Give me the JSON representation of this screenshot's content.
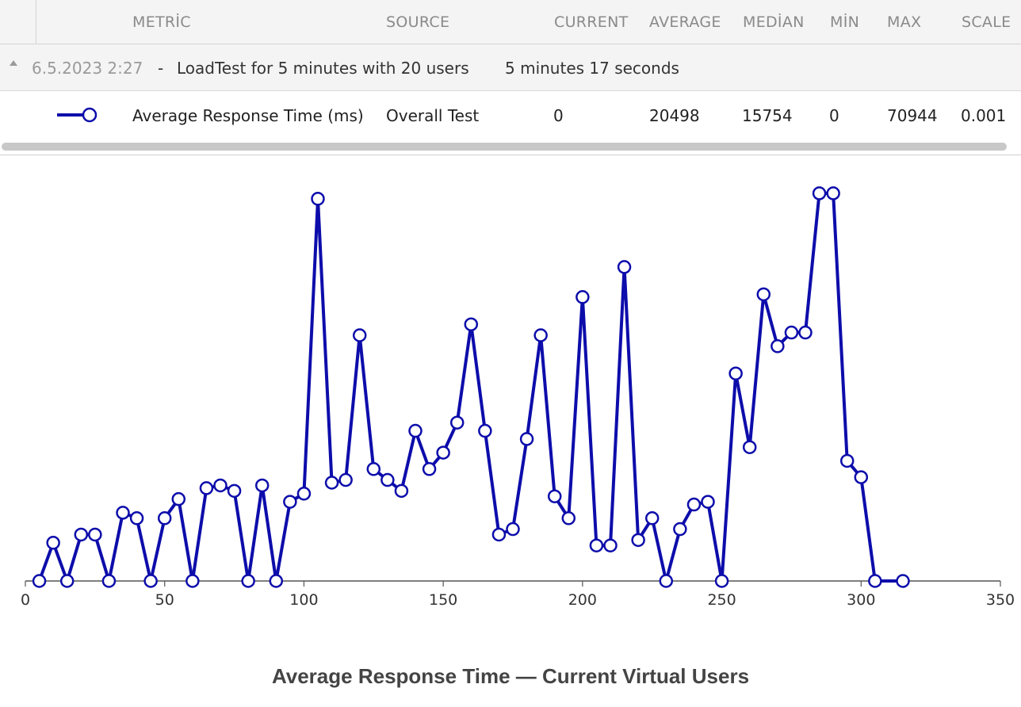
{
  "header": {
    "columns": [
      {
        "label": "METRİC"
      },
      {
        "label": "SOURCE"
      },
      {
        "label": "CURRENT"
      },
      {
        "label": "AVERAGE"
      },
      {
        "label": "MEDİAN"
      },
      {
        "label": "MİN"
      },
      {
        "label": "MAX"
      },
      {
        "label": "SCALE"
      }
    ]
  },
  "group": {
    "date": "6.5.2023 2:27",
    "separator": "-",
    "name": "LoadTest for 5 minutes with 20 users",
    "duration": "5 minutes 17 seconds"
  },
  "row": {
    "metric": "Average Response Time (ms)",
    "source": "Overall Test",
    "current": "0",
    "average": "20498",
    "median": "15754",
    "min": "0",
    "max": "70944",
    "scale": "0.001"
  },
  "colors": {
    "series": "#0d0dab",
    "axis": "#555555",
    "header_bg": "#f4f4f4"
  },
  "caption": "Average Response Time — Current Virtual Users",
  "chart_data": {
    "type": "line",
    "title": "",
    "xlabel": "",
    "ylabel": "",
    "xlim": [
      0,
      350
    ],
    "ylim": [
      0,
      72
    ],
    "x_ticks": [
      0,
      50,
      100,
      150,
      200,
      250,
      300,
      350
    ],
    "grid": false,
    "y_axis_visible": false,
    "series": [
      {
        "name": "Average Response Time (ms)",
        "x": [
          5,
          10,
          15,
          20,
          25,
          30,
          35,
          40,
          45,
          50,
          55,
          60,
          65,
          70,
          75,
          80,
          85,
          90,
          95,
          100,
          105,
          110,
          115,
          120,
          125,
          130,
          135,
          140,
          145,
          150,
          155,
          160,
          165,
          170,
          175,
          180,
          185,
          190,
          195,
          200,
          205,
          210,
          215,
          220,
          225,
          230,
          235,
          240,
          245,
          250,
          255,
          260,
          265,
          270,
          275,
          280,
          285,
          290,
          295,
          300,
          305,
          315
        ],
        "y": [
          0,
          7,
          0,
          8.5,
          8.5,
          0,
          12.5,
          11.5,
          0,
          11.5,
          15,
          0,
          17,
          17.5,
          16.5,
          0,
          17.5,
          0,
          14.5,
          16,
          70,
          18,
          18.5,
          45,
          20.5,
          18.5,
          16.5,
          27.5,
          20.5,
          23.5,
          29,
          47,
          27.5,
          8.5,
          9.5,
          26,
          45,
          15.5,
          11.5,
          52,
          6.5,
          6.5,
          57.5,
          7.5,
          11.5,
          0,
          9.5,
          14,
          14.5,
          0,
          38,
          24.5,
          52.5,
          43,
          45.5,
          45.5,
          71,
          71,
          22,
          19,
          0,
          0
        ]
      }
    ]
  }
}
